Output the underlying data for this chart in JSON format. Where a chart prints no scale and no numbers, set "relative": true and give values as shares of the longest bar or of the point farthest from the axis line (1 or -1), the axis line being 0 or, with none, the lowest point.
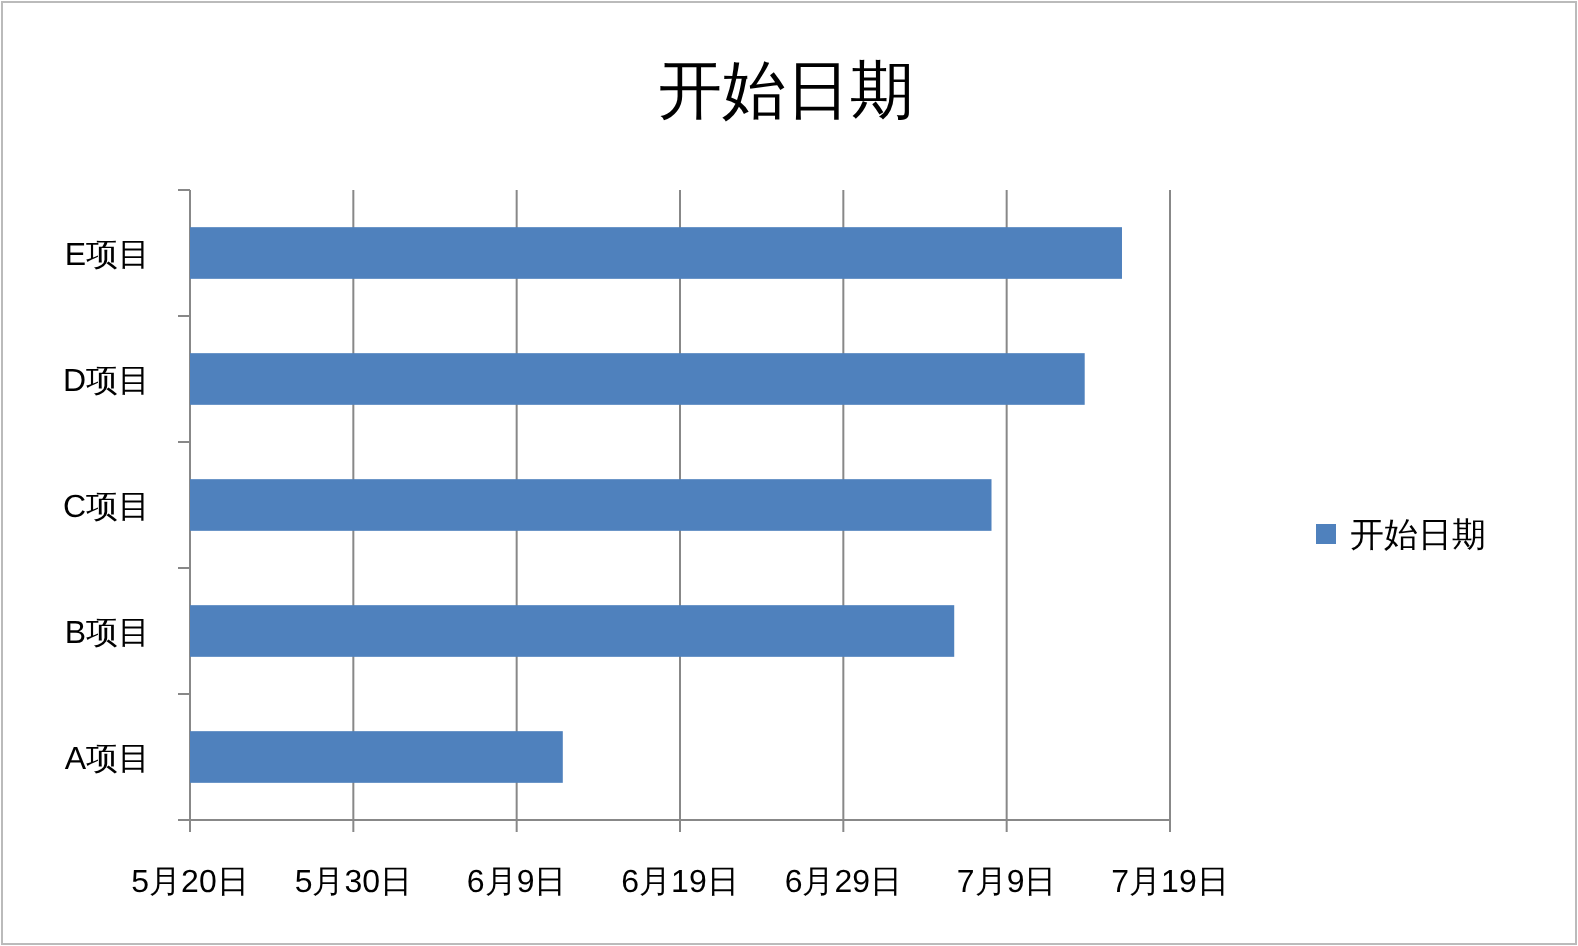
{
  "chart_data": {
    "type": "bar",
    "orientation": "horizontal",
    "relative": true,
    "title": "开始日期",
    "categories": [
      "E项目",
      "D项目",
      "C项目",
      "B项目",
      "A项目"
    ],
    "series": [
      {
        "name": "开始日期",
        "color": "#4f81bd",
        "values": [
          1,
          0.96,
          0.86,
          0.82,
          0.4
        ]
      }
    ],
    "annotations": [
      "5月20日",
      "5月30日",
      "6月9日",
      "6月19日",
      "6月29日",
      "7月9日",
      "7月19日"
    ],
    "grid": "x",
    "legend": "right"
  }
}
